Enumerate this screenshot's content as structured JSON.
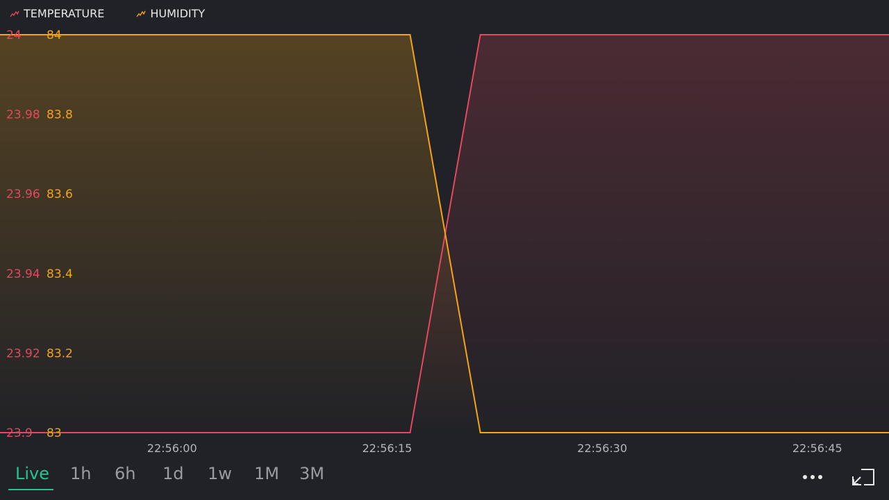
{
  "colors": {
    "temperature": "#e2495f",
    "humidity": "#f3a417",
    "active": "#23c48e",
    "background": "#212227"
  },
  "legend": [
    {
      "label": "TEMPERATURE",
      "icon": "temperature-series-icon"
    },
    {
      "label": "HUMIDITY",
      "icon": "humidity-series-icon"
    }
  ],
  "range_tabs": [
    {
      "label": "Live",
      "active": true
    },
    {
      "label": "1h",
      "active": false
    },
    {
      "label": "6h",
      "active": false
    },
    {
      "label": "1d",
      "active": false
    },
    {
      "label": "1w",
      "active": false
    },
    {
      "label": "1M",
      "active": false
    },
    {
      "label": "3M",
      "active": false
    }
  ],
  "chart_data": {
    "type": "area",
    "x_range": [
      "22:55:48",
      "22:56:50"
    ],
    "x_ticks": [
      "22:56:00",
      "22:56:15",
      "22:56:30",
      "22:56:45"
    ],
    "y_axes": [
      {
        "series": "TEMPERATURE",
        "ylim": [
          23.9,
          24
        ],
        "ticks": [
          "24",
          "23.98",
          "23.96",
          "23.94",
          "23.92",
          "23.9"
        ]
      },
      {
        "series": "HUMIDITY",
        "ylim": [
          83,
          84
        ],
        "ticks": [
          "84",
          "83.8",
          "83.6",
          "83.4",
          "83.2",
          "83"
        ]
      }
    ],
    "series": [
      {
        "name": "TEMPERATURE",
        "axis": 0,
        "points": [
          [
            "22:55:48",
            23.9
          ],
          [
            "22:56:16.6",
            23.9
          ],
          [
            "22:56:21.5",
            24
          ],
          [
            "22:56:50",
            24
          ]
        ]
      },
      {
        "name": "HUMIDITY",
        "axis": 1,
        "points": [
          [
            "22:55:48",
            84
          ],
          [
            "22:56:16.6",
            84
          ],
          [
            "22:56:21.5",
            83
          ],
          [
            "22:56:50",
            83
          ]
        ]
      }
    ],
    "legend_position": "top-left",
    "grid": false
  }
}
